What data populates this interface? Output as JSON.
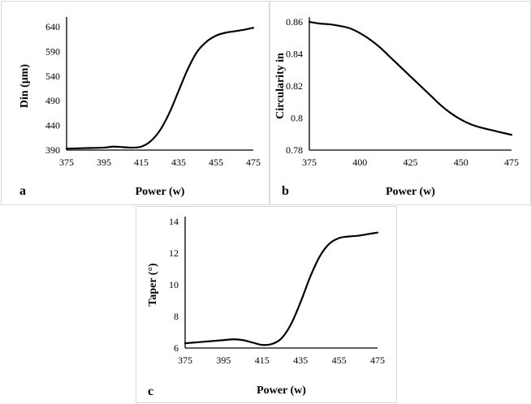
{
  "chart_data": [
    {
      "id": "a",
      "type": "line",
      "panel_label": "a",
      "xlabel": "Power (w)",
      "ylabel": "Din (μm)",
      "x_ticks": [
        375,
        395,
        415,
        435,
        455,
        475
      ],
      "y_ticks": [
        390,
        440,
        490,
        540,
        590,
        640
      ],
      "xlim": [
        375,
        475
      ],
      "ylim": [
        390,
        650
      ],
      "legend": "none",
      "grid": false,
      "series": [
        {
          "x": [
            375,
            385,
            395,
            400,
            405,
            410,
            415,
            420,
            425,
            430,
            435,
            440,
            445,
            450,
            455,
            460,
            465,
            470,
            475
          ],
          "y": [
            393,
            394,
            395,
            397,
            396,
            395,
            397,
            408,
            430,
            465,
            510,
            555,
            590,
            610,
            622,
            628,
            631,
            634,
            638
          ]
        }
      ]
    },
    {
      "id": "b",
      "type": "line",
      "panel_label": "b",
      "xlabel": "Power (w)",
      "ylabel": "Circularity in",
      "x_ticks": [
        375,
        400,
        425,
        450,
        475
      ],
      "y_ticks": [
        0.78,
        0.8,
        0.82,
        0.84,
        0.86
      ],
      "xlim": [
        375,
        475
      ],
      "ylim": [
        0.78,
        0.86
      ],
      "legend": "none",
      "grid": false,
      "series": [
        {
          "x": [
            375,
            380,
            385,
            390,
            395,
            400,
            405,
            410,
            415,
            420,
            425,
            430,
            435,
            440,
            445,
            450,
            455,
            460,
            465,
            470,
            475
          ],
          "y": [
            0.86,
            0.859,
            0.8585,
            0.8575,
            0.856,
            0.853,
            0.849,
            0.844,
            0.838,
            0.832,
            0.826,
            0.82,
            0.814,
            0.808,
            0.803,
            0.799,
            0.796,
            0.794,
            0.7925,
            0.791,
            0.7895
          ]
        }
      ]
    },
    {
      "id": "c",
      "type": "line",
      "panel_label": "c",
      "xlabel": "Power (w)",
      "ylabel": "Taper (°)",
      "x_ticks": [
        375,
        395,
        415,
        435,
        455,
        475
      ],
      "y_ticks": [
        6,
        8,
        10,
        12,
        14
      ],
      "xlim": [
        375,
        475
      ],
      "ylim": [
        6,
        14
      ],
      "legend": "none",
      "grid": false,
      "series": [
        {
          "x": [
            375,
            385,
            395,
            400,
            405,
            410,
            415,
            420,
            425,
            430,
            435,
            440,
            445,
            450,
            455,
            460,
            465,
            470,
            475
          ],
          "y": [
            6.3,
            6.4,
            6.5,
            6.55,
            6.5,
            6.35,
            6.2,
            6.25,
            6.6,
            7.5,
            8.9,
            10.5,
            11.8,
            12.6,
            12.95,
            13.05,
            13.1,
            13.2,
            13.3
          ]
        }
      ]
    }
  ]
}
